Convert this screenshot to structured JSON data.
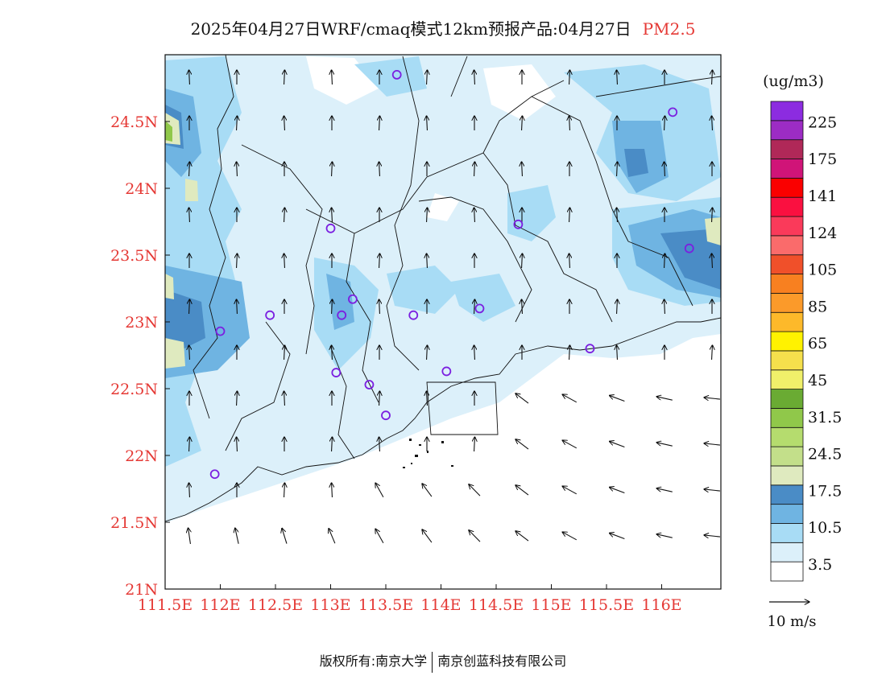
{
  "title": {
    "main": "2025年04月27日WRF/cmaq模式12km预报产品:04月27日",
    "species": "PM2.5"
  },
  "colorbar": {
    "unit": "(ug/m3)",
    "colors": [
      "#ffffff",
      "#dcf0fa",
      "#a8dcf5",
      "#6fb4e2",
      "#4a8cc6",
      "#dfeabf",
      "#c3df8a",
      "#b5dc6e",
      "#90c84a",
      "#6aab33",
      "#f0f06a",
      "#f5e04c",
      "#fff200",
      "#fdb92a",
      "#fb9a2a",
      "#f88020",
      "#f0502a",
      "#fa6b6b",
      "#fa3a5a",
      "#fa1040",
      "#fa0000",
      "#d01478",
      "#b02858",
      "#9c2cc4",
      "#8c2ce0"
    ],
    "labels": [
      "3.5",
      "10.5",
      "17.5",
      "24.5",
      "31.5",
      "45",
      "65",
      "85",
      "105",
      "124",
      "141",
      "175",
      "225"
    ]
  },
  "axes": {
    "x_ticks": [
      "111.5E",
      "112E",
      "112.5E",
      "113E",
      "113.5E",
      "114E",
      "114.5E",
      "115E",
      "115.5E",
      "116E"
    ],
    "y_ticks": [
      "24.5N",
      "24N",
      "23.5N",
      "23N",
      "22.5N",
      "22N",
      "21.5N",
      "21N"
    ]
  },
  "wind_legend": {
    "label": "10 m/s"
  },
  "stations": [
    {
      "lon": 113.6,
      "lat": 24.85
    },
    {
      "lon": 116.1,
      "lat": 24.57
    },
    {
      "lon": 113.0,
      "lat": 23.7
    },
    {
      "lon": 114.7,
      "lat": 23.73
    },
    {
      "lon": 116.25,
      "lat": 23.55
    },
    {
      "lon": 112.45,
      "lat": 23.05
    },
    {
      "lon": 113.1,
      "lat": 23.05
    },
    {
      "lon": 113.2,
      "lat": 23.17
    },
    {
      "lon": 113.75,
      "lat": 23.05
    },
    {
      "lon": 114.35,
      "lat": 23.1
    },
    {
      "lon": 112.0,
      "lat": 22.93
    },
    {
      "lon": 113.05,
      "lat": 22.62
    },
    {
      "lon": 113.35,
      "lat": 22.53
    },
    {
      "lon": 114.05,
      "lat": 22.63
    },
    {
      "lon": 115.35,
      "lat": 22.8
    },
    {
      "lon": 113.5,
      "lat": 22.3
    },
    {
      "lon": 111.95,
      "lat": 21.86
    }
  ],
  "footer": {
    "left": "版权所有:南京大学",
    "right": "南京创蓝科技有限公司"
  }
}
